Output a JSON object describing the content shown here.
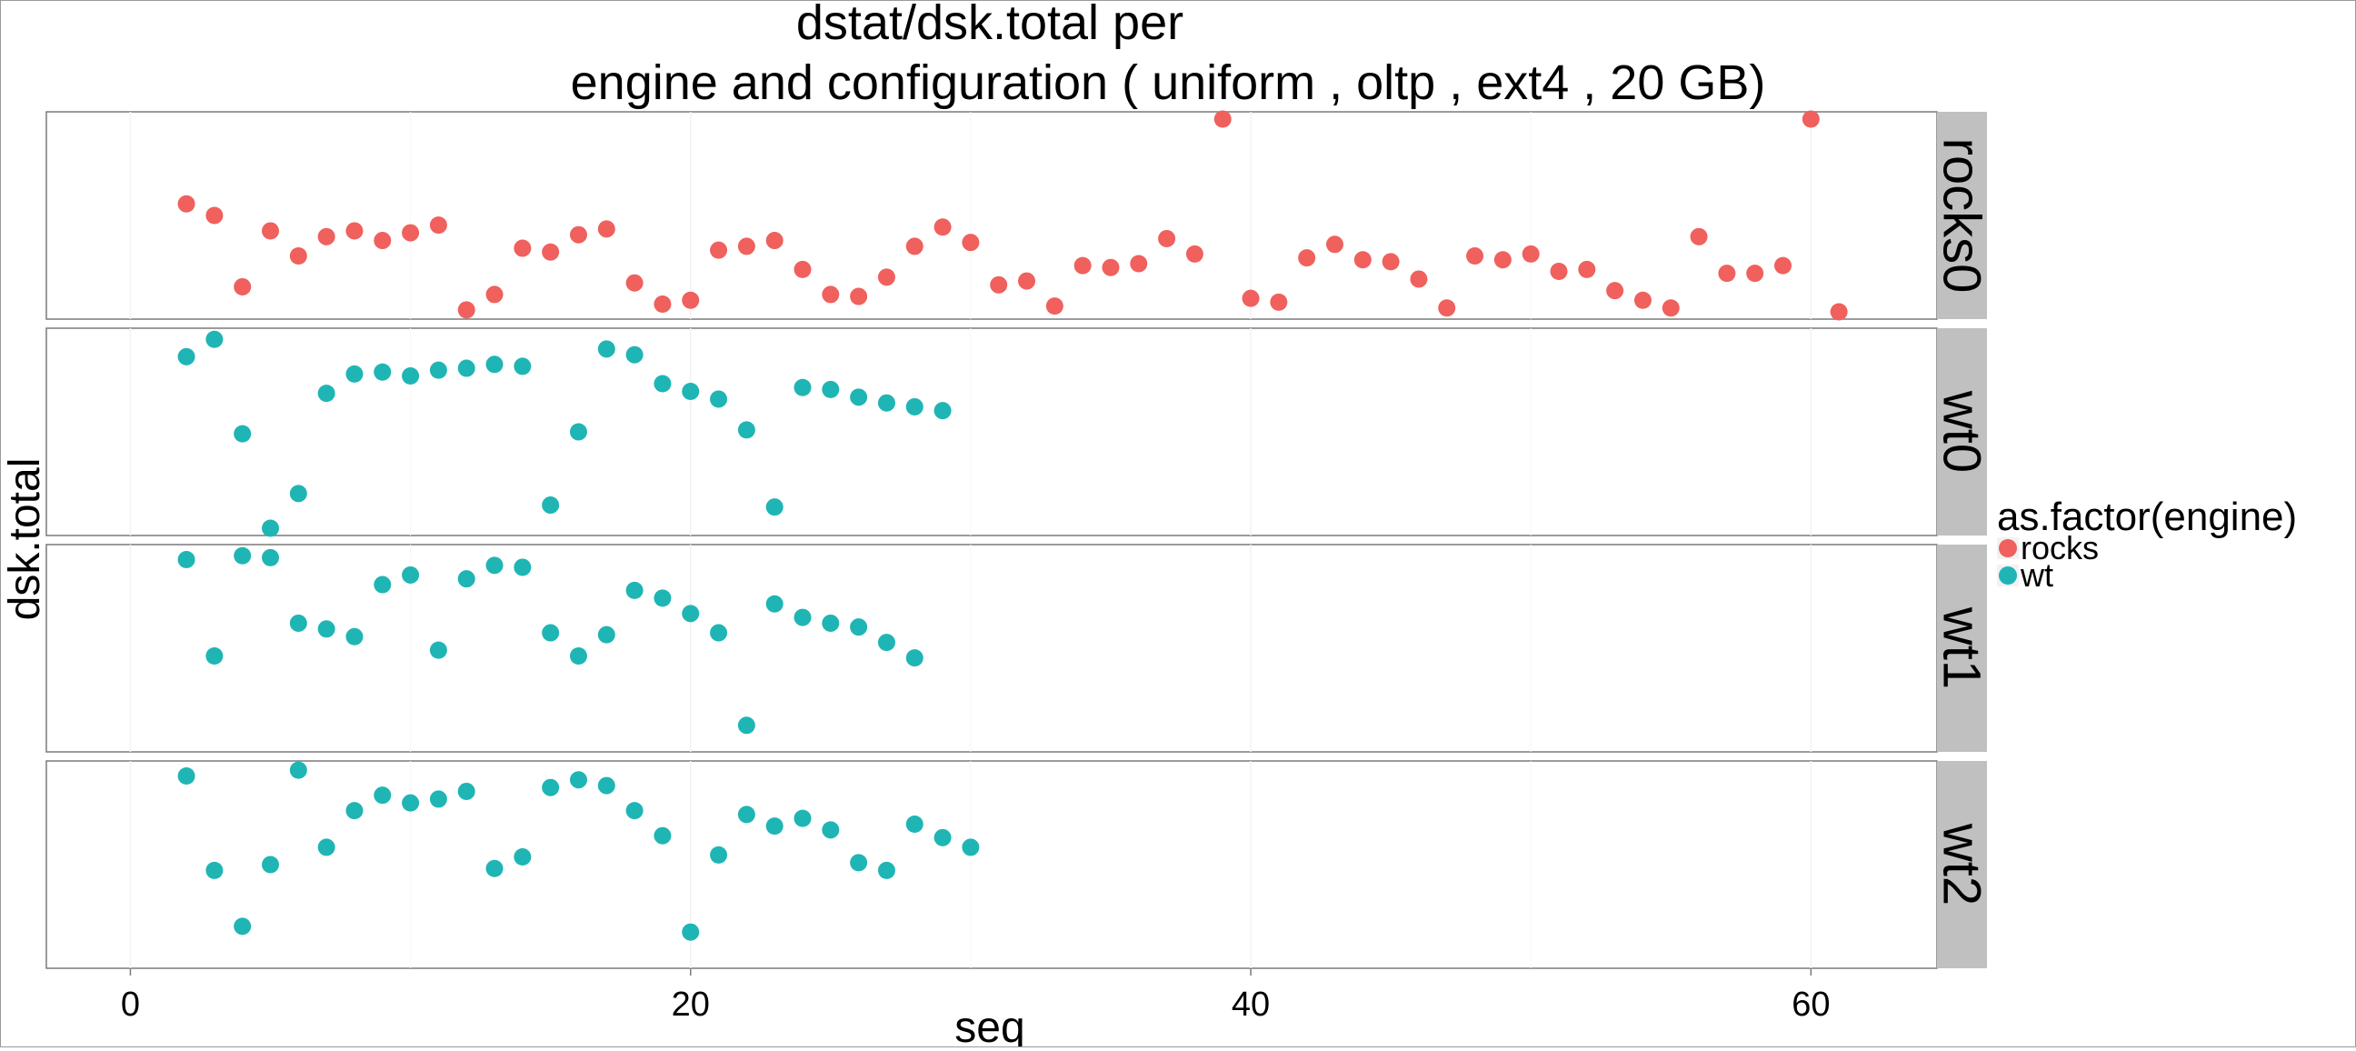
{
  "colors": {
    "rocks": "#F0605D",
    "wt": "#1FB5B5",
    "strip": "#C0C0C0",
    "panel_border": "#7a7a7a",
    "grid": "#f2f2f2"
  },
  "chart_data": {
    "type": "scatter",
    "title_line1": "dstat/dsk.total per",
    "title_line2": "engine and configuration ( uniform , oltp , ext4 ,  20 GB)",
    "xlabel": "seq",
    "ylabel": "dsk.total",
    "xlim": [
      -3,
      64.5
    ],
    "x_ticks": [
      0,
      20,
      40,
      60
    ],
    "x_tick_labels": [
      "0",
      "20",
      "40",
      "60"
    ],
    "grid": true,
    "y_ticks_shown": false,
    "facet_note": "Each facet row uses its own (free) y scale; y values are relative positions within the facet (0 = bottom, 1 = top) because the y axis has no tick labels.",
    "legend": {
      "title": "as.factor(engine)",
      "placement": "right",
      "entries": [
        {
          "label": "rocks",
          "color": "#F0605D"
        },
        {
          "label": "wt",
          "color": "#1FB5B5"
        }
      ]
    },
    "facets": [
      {
        "label": "rocks0",
        "engine": "rocks",
        "points": [
          [
            2,
            0.56
          ],
          [
            3,
            0.5
          ],
          [
            4,
            0.13
          ],
          [
            5,
            0.42
          ],
          [
            6,
            0.29
          ],
          [
            7,
            0.39
          ],
          [
            8,
            0.42
          ],
          [
            9,
            0.37
          ],
          [
            10,
            0.41
          ],
          [
            11,
            0.45
          ],
          [
            12,
            0.01
          ],
          [
            13,
            0.09
          ],
          [
            14,
            0.33
          ],
          [
            15,
            0.31
          ],
          [
            16,
            0.4
          ],
          [
            17,
            0.43
          ],
          [
            18,
            0.15
          ],
          [
            19,
            0.04
          ],
          [
            20,
            0.06
          ],
          [
            21,
            0.32
          ],
          [
            22,
            0.34
          ],
          [
            23,
            0.37
          ],
          [
            24,
            0.22
          ],
          [
            25,
            0.09
          ],
          [
            26,
            0.08
          ],
          [
            27,
            0.18
          ],
          [
            28,
            0.34
          ],
          [
            29,
            0.44
          ],
          [
            30,
            0.36
          ],
          [
            31,
            0.14
          ],
          [
            32,
            0.16
          ],
          [
            33,
            0.03
          ],
          [
            34,
            0.24
          ],
          [
            35,
            0.23
          ],
          [
            36,
            0.25
          ],
          [
            37,
            0.38
          ],
          [
            38,
            0.3
          ],
          [
            39,
            1.0
          ],
          [
            40,
            0.07
          ],
          [
            41,
            0.05
          ],
          [
            42,
            0.28
          ],
          [
            43,
            0.35
          ],
          [
            44,
            0.27
          ],
          [
            45,
            0.26
          ],
          [
            46,
            0.17
          ],
          [
            47,
            0.02
          ],
          [
            48,
            0.29
          ],
          [
            49,
            0.27
          ],
          [
            50,
            0.3
          ],
          [
            51,
            0.21
          ],
          [
            52,
            0.22
          ],
          [
            53,
            0.11
          ],
          [
            54,
            0.06
          ],
          [
            55,
            0.02
          ],
          [
            56,
            0.39
          ],
          [
            57,
            0.2
          ],
          [
            58,
            0.2
          ],
          [
            59,
            0.24
          ],
          [
            60,
            1.0
          ],
          [
            61,
            0.0
          ]
        ]
      },
      {
        "label": "wt0",
        "engine": "wt",
        "points": [
          [
            2,
            0.89
          ],
          [
            3,
            0.98
          ],
          [
            4,
            0.49
          ],
          [
            5,
            0.0
          ],
          [
            6,
            0.18
          ],
          [
            7,
            0.7
          ],
          [
            8,
            0.8
          ],
          [
            9,
            0.81
          ],
          [
            10,
            0.79
          ],
          [
            11,
            0.82
          ],
          [
            12,
            0.83
          ],
          [
            13,
            0.85
          ],
          [
            14,
            0.84
          ],
          [
            15,
            0.12
          ],
          [
            16,
            0.5
          ],
          [
            17,
            0.93
          ],
          [
            18,
            0.9
          ],
          [
            19,
            0.75
          ],
          [
            20,
            0.71
          ],
          [
            21,
            0.67
          ],
          [
            22,
            0.51
          ],
          [
            23,
            0.11
          ],
          [
            24,
            0.73
          ],
          [
            25,
            0.72
          ],
          [
            26,
            0.68
          ],
          [
            27,
            0.65
          ],
          [
            28,
            0.63
          ],
          [
            29,
            0.61
          ]
        ]
      },
      {
        "label": "wt1",
        "engine": "wt",
        "points": [
          [
            2,
            0.96
          ],
          [
            3,
            0.46
          ],
          [
            4,
            0.98
          ],
          [
            5,
            0.97
          ],
          [
            6,
            0.63
          ],
          [
            7,
            0.6
          ],
          [
            8,
            0.56
          ],
          [
            9,
            0.83
          ],
          [
            10,
            0.88
          ],
          [
            11,
            0.49
          ],
          [
            12,
            0.86
          ],
          [
            13,
            0.93
          ],
          [
            14,
            0.92
          ],
          [
            15,
            0.58
          ],
          [
            16,
            0.46
          ],
          [
            17,
            0.57
          ],
          [
            18,
            0.8
          ],
          [
            19,
            0.76
          ],
          [
            20,
            0.68
          ],
          [
            21,
            0.58
          ],
          [
            22,
            0.1
          ],
          [
            23,
            0.73
          ],
          [
            24,
            0.66
          ],
          [
            25,
            0.63
          ],
          [
            26,
            0.61
          ],
          [
            27,
            0.53
          ],
          [
            28,
            0.45
          ]
        ]
      },
      {
        "label": "wt2",
        "engine": "wt",
        "points": [
          [
            2,
            0.96
          ],
          [
            3,
            0.47
          ],
          [
            4,
            0.18
          ],
          [
            5,
            0.5
          ],
          [
            6,
            0.99
          ],
          [
            7,
            0.59
          ],
          [
            8,
            0.78
          ],
          [
            9,
            0.86
          ],
          [
            10,
            0.82
          ],
          [
            11,
            0.84
          ],
          [
            12,
            0.88
          ],
          [
            13,
            0.48
          ],
          [
            14,
            0.54
          ],
          [
            15,
            0.9
          ],
          [
            16,
            0.94
          ],
          [
            17,
            0.91
          ],
          [
            18,
            0.78
          ],
          [
            19,
            0.65
          ],
          [
            20,
            0.15
          ],
          [
            21,
            0.55
          ],
          [
            22,
            0.76
          ],
          [
            23,
            0.7
          ],
          [
            24,
            0.74
          ],
          [
            25,
            0.68
          ],
          [
            26,
            0.51
          ],
          [
            27,
            0.47
          ],
          [
            28,
            0.71
          ],
          [
            29,
            0.64
          ],
          [
            30,
            0.59
          ]
        ]
      }
    ]
  }
}
